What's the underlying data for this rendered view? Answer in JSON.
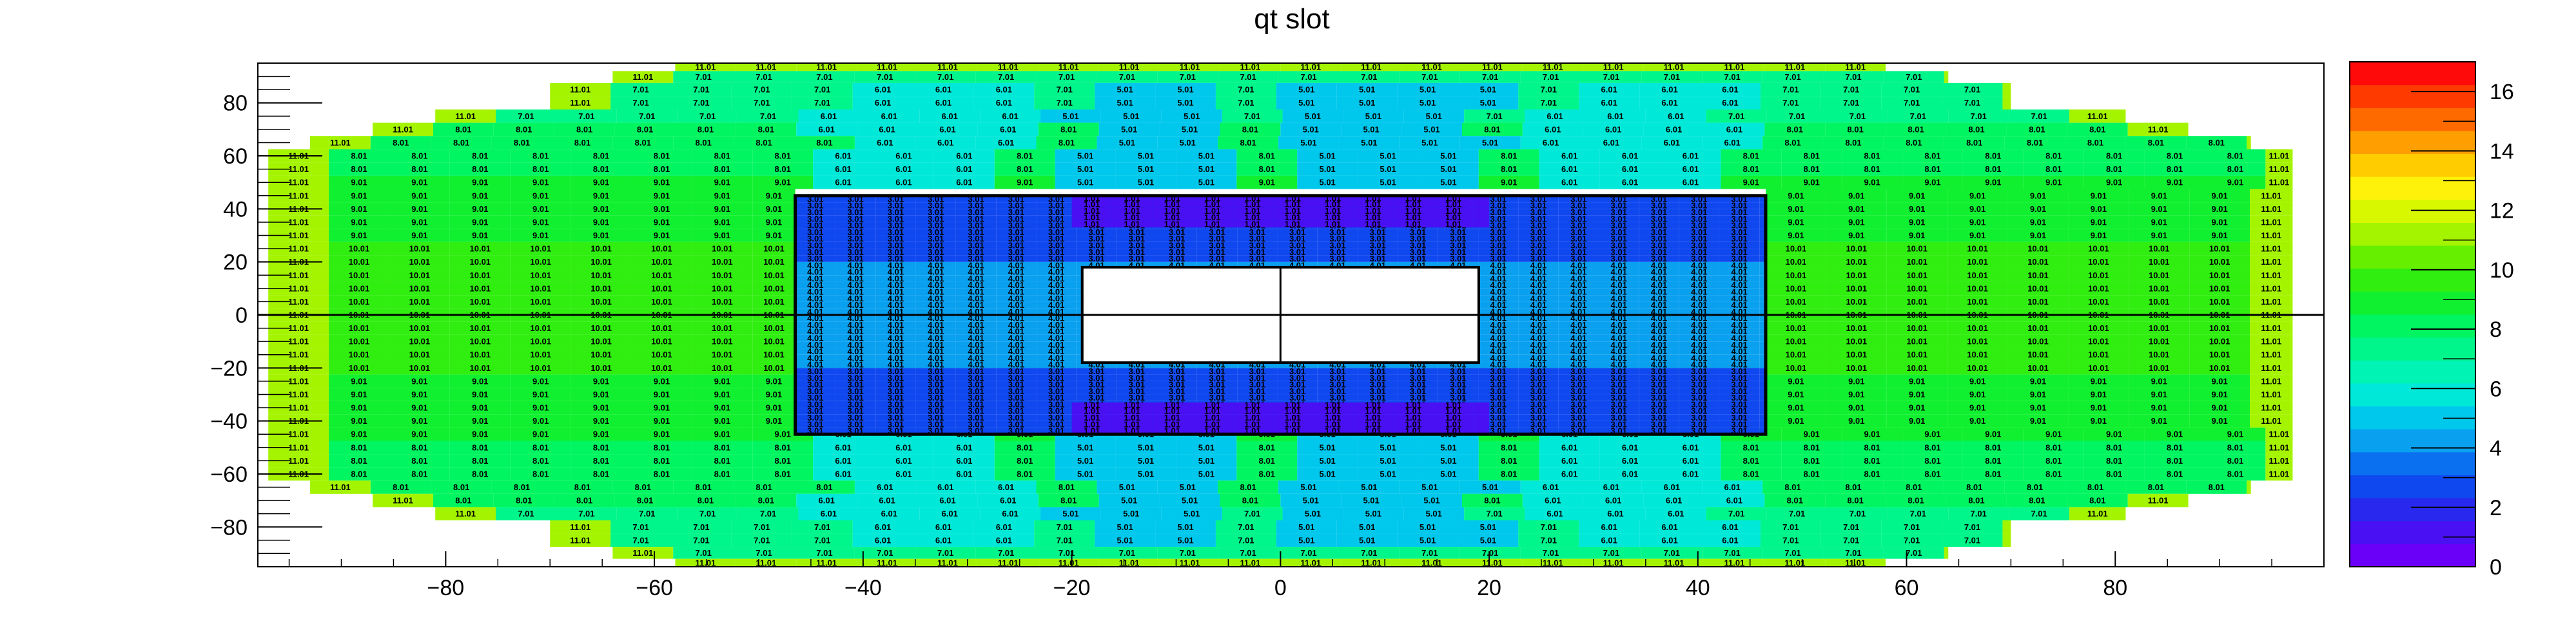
{
  "chart_data": {
    "type": "heatmap",
    "title": "qt slot",
    "xlabel": "",
    "ylabel": "",
    "xlim": [
      -98,
      100
    ],
    "ylim": [
      -95,
      95
    ],
    "x_ticks": [
      -80,
      -60,
      -40,
      -20,
      0,
      20,
      40,
      60,
      80
    ],
    "y_ticks": [
      -80,
      -60,
      -40,
      -20,
      0,
      20,
      40,
      60,
      80
    ],
    "x_tick_labels": [
      "−80",
      "−60",
      "−40",
      "−20",
      "0",
      "20",
      "40",
      "60",
      "80"
    ],
    "y_tick_labels": [
      "−80",
      "−60",
      "−40",
      "−20",
      "0",
      "20",
      "40",
      "60",
      "80"
    ],
    "z_range": [
      0,
      17
    ],
    "palette_ticks": [
      0,
      2,
      4,
      6,
      8,
      10,
      12,
      14,
      16
    ],
    "palette_tick_labels": [
      "0",
      "2",
      "4",
      "6",
      "8",
      "10",
      "12",
      "14",
      "16"
    ],
    "palette_colors": [
      "#6a00f8",
      "#4a10f4",
      "#2828ee",
      "#1048f0",
      "#0a70f0",
      "#0aa0f0",
      "#00c8ec",
      "#00e8d8",
      "#00f4b4",
      "#00f58a",
      "#00f560",
      "#10f030",
      "#30ee10",
      "#66f000",
      "#a4f400",
      "#d8f800",
      "#fff20a",
      "#ffcc00",
      "#ff9e00",
      "#ff6a00",
      "#ff3a00",
      "#ff0a0a"
    ],
    "outer_bin_width": 5.8,
    "inner_bin_width": 3.85,
    "outer_rows": [
      {
        "y": [
          92,
          95
        ],
        "half_width": 58,
        "level": 11.01
      },
      {
        "y": [
          87.5,
          92
        ],
        "half_width": 64,
        "level": 7.01
      },
      {
        "y": [
          82.5,
          87.5
        ],
        "half_width": 70,
        "level": 7.01
      },
      {
        "y": [
          77.5,
          82.5
        ],
        "half_width": 70,
        "level": 7.01
      },
      {
        "y": [
          72.5,
          77.5
        ],
        "half_width": 81,
        "level": 7.01
      },
      {
        "y": [
          67.5,
          72.5
        ],
        "half_width": 87,
        "level": 8.01
      },
      {
        "y": [
          62.5,
          67.5
        ],
        "half_width": 93,
        "level": 8.01
      },
      {
        "y": [
          57.5,
          62.5
        ],
        "half_width": 97,
        "level": 8.01
      },
      {
        "y": [
          52.5,
          57.5
        ],
        "half_width": 97,
        "level": 8.01
      },
      {
        "y": [
          47.5,
          52.5
        ],
        "half_width": 97,
        "level": 9.01
      },
      {
        "y": [
          42.5,
          47.5
        ],
        "half_width": 97,
        "level": 9.01
      },
      {
        "y": [
          37.5,
          42.5
        ],
        "half_width": 97,
        "level": 9.01
      },
      {
        "y": [
          32.5,
          37.5
        ],
        "half_width": 97,
        "level": 9.01
      },
      {
        "y": [
          27.5,
          32.5
        ],
        "half_width": 97,
        "level": 9.01
      },
      {
        "y": [
          22.5,
          27.5
        ],
        "half_width": 97,
        "level": 10.01
      },
      {
        "y": [
          17.5,
          22.5
        ],
        "half_width": 97,
        "level": 10.01
      },
      {
        "y": [
          12.5,
          17.5
        ],
        "half_width": 97,
        "level": 10.01
      },
      {
        "y": [
          7.5,
          12.5
        ],
        "half_width": 97,
        "level": 10.01
      },
      {
        "y": [
          2.5,
          7.5
        ],
        "half_width": 97,
        "level": 10.01
      },
      {
        "y": [
          -2.5,
          2.5
        ],
        "half_width": 97,
        "level": 10.01
      },
      {
        "y": [
          -7.5,
          -2.5
        ],
        "half_width": 97,
        "level": 10.01
      },
      {
        "y": [
          -12.5,
          -7.5
        ],
        "half_width": 97,
        "level": 10.01
      },
      {
        "y": [
          -17.5,
          -12.5
        ],
        "half_width": 97,
        "level": 10.01
      },
      {
        "y": [
          -22.5,
          -17.5
        ],
        "half_width": 97,
        "level": 10.01
      },
      {
        "y": [
          -27.5,
          -22.5
        ],
        "half_width": 97,
        "level": 9.01
      },
      {
        "y": [
          -32.5,
          -27.5
        ],
        "half_width": 97,
        "level": 9.01
      },
      {
        "y": [
          -37.5,
          -32.5
        ],
        "half_width": 97,
        "level": 9.01
      },
      {
        "y": [
          -42.5,
          -37.5
        ],
        "half_width": 97,
        "level": 9.01
      },
      {
        "y": [
          -47.5,
          -42.5
        ],
        "half_width": 97,
        "level": 9.01
      },
      {
        "y": [
          -52.5,
          -47.5
        ],
        "half_width": 97,
        "level": 8.01
      },
      {
        "y": [
          -57.5,
          -52.5
        ],
        "half_width": 97,
        "level": 8.01
      },
      {
        "y": [
          -62.5,
          -57.5
        ],
        "half_width": 97,
        "level": 8.01
      },
      {
        "y": [
          -67.5,
          -62.5
        ],
        "half_width": 93,
        "level": 8.01
      },
      {
        "y": [
          -72.5,
          -67.5
        ],
        "half_width": 87,
        "level": 8.01
      },
      {
        "y": [
          -77.5,
          -72.5
        ],
        "half_width": 81,
        "level": 7.01
      },
      {
        "y": [
          -82.5,
          -77.5
        ],
        "half_width": 70,
        "level": 7.01
      },
      {
        "y": [
          -87.5,
          -82.5
        ],
        "half_width": 70,
        "level": 7.01
      },
      {
        "y": [
          -92,
          -87.5
        ],
        "half_width": 64,
        "level": 7.01
      },
      {
        "y": [
          -95,
          -92
        ],
        "half_width": 58,
        "level": 11.01
      }
    ],
    "outer_edge_level": 11.01,
    "center_columns": [
      {
        "x": [
          -46.5,
          -23
        ],
        "level": 6.01
      },
      {
        "x": [
          -23,
          -0.5
        ],
        "level": 5.01
      },
      {
        "x": [
          -0.5,
          23
        ],
        "level": 5.01
      },
      {
        "x": [
          23,
          46.5
        ],
        "level": 6.01
      }
    ],
    "center_band_y": [
      -47.5,
      47.5
    ],
    "inner_frame": {
      "x": [
        -46.5,
        46.5
      ],
      "y": [
        -45,
        45
      ]
    },
    "inner_zones": [
      {
        "y": [
          -45,
          -20
        ],
        "level": 3.01
      },
      {
        "y": [
          -20,
          20
        ],
        "level": 4.01
      },
      {
        "y": [
          20,
          45
        ],
        "level": 3.01
      }
    ],
    "inner_top_strip": {
      "y": [
        33,
        45
      ],
      "x": [
        -20,
        20
      ],
      "level": 1.01
    },
    "inner_bottom_strip": {
      "y": [
        -45,
        -33
      ],
      "x": [
        -20,
        20
      ],
      "level": 1.01
    },
    "hole": {
      "x": [
        -19,
        19
      ],
      "y": [
        -18,
        18
      ]
    }
  }
}
